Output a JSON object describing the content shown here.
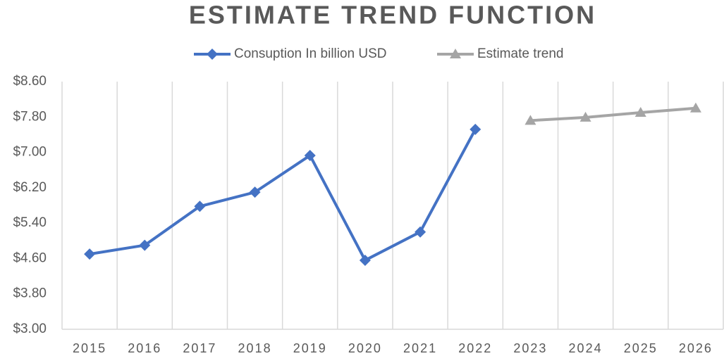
{
  "chart_data": {
    "type": "line",
    "title": "ESTIMATE TREND FUNCTION",
    "categories": [
      "2015",
      "2016",
      "2017",
      "2018",
      "2019",
      "2020",
      "2021",
      "2022",
      "2023",
      "2024",
      "2025",
      "2026"
    ],
    "series": [
      {
        "name": "Consuption In billion USD",
        "color": "#4472c4",
        "marker": "diamond",
        "values": [
          4.7,
          4.9,
          5.78,
          6.1,
          6.93,
          4.56,
          5.2,
          7.52,
          null,
          null,
          null,
          null
        ]
      },
      {
        "name": "Estimate trend",
        "color": "#a5a5a5",
        "marker": "triangle",
        "values": [
          null,
          null,
          null,
          null,
          null,
          null,
          null,
          null,
          7.72,
          7.79,
          7.9,
          8.0
        ]
      }
    ],
    "ylim": [
      3,
      8.6
    ],
    "yticks": [
      {
        "value": 3,
        "label": "$3.00"
      },
      {
        "value": 3.8,
        "label": "$3.80"
      },
      {
        "value": 4.6,
        "label": "$4.60"
      },
      {
        "value": 5.4,
        "label": "$5.40"
      },
      {
        "value": 6.2,
        "label": "$6.20"
      },
      {
        "value": 7,
        "label": "$7.00"
      },
      {
        "value": 7.8,
        "label": "$7.80"
      },
      {
        "value": 8.6,
        "label": "$8.60"
      }
    ],
    "legend": "top",
    "grid": "vertical"
  }
}
